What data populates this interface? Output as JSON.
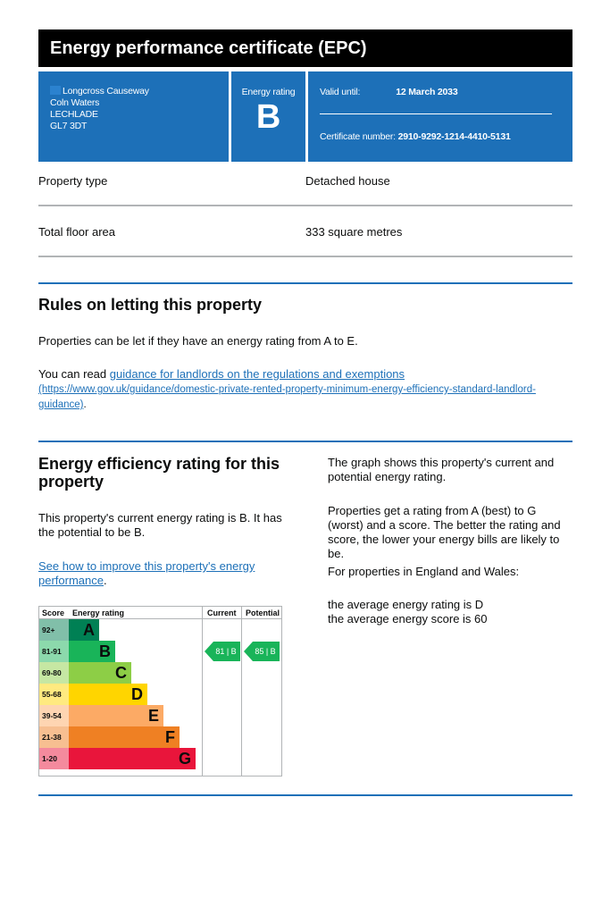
{
  "header": {
    "title": "Energy performance certificate (EPC)"
  },
  "address": {
    "lines": [
      "Longcross Causeway",
      "Coln Waters",
      "LECHLADE",
      "GL7 3DT"
    ]
  },
  "rating_box": {
    "label": "Energy rating",
    "value": "B"
  },
  "validity": {
    "valid_label": "Valid until:",
    "valid_date": "12 March 2033",
    "cert_label": "Certificate number:",
    "cert_number": "2910-9292-1214-4410-5131"
  },
  "summary": [
    {
      "key": "Property type",
      "value": "Detached house"
    },
    {
      "key": "Total floor area",
      "value": "333 square metres"
    }
  ],
  "rules": {
    "heading": "Rules on letting this property",
    "para1": "Properties can be let if they have an energy rating from A to E.",
    "para2_prefix": "You can read ",
    "link_text": "guidance for landlords on the regulations and exemptions",
    "link_url": "(https://www.gov.uk/guidance/domestic-private-rented-property-minimum-energy-efficiency-standard-landlord-guidance)",
    "para2_suffix": "."
  },
  "efficiency": {
    "heading": "Energy efficiency rating for this property",
    "para1": "This property's current energy rating is B. It has the potential to be B.",
    "link_text": "See how to improve this property's energy performance",
    "link_suffix": ".",
    "right_p1": "The graph shows this property's current and potential energy rating.",
    "right_p2": "Properties get a rating from A (best) to G (worst) and a score. The better the rating and score, the lower your energy bills are likely to be.",
    "right_p3": "For properties in England and Wales:",
    "right_p4a": "the average energy rating is D",
    "right_p4b": "the average energy score is 60"
  },
  "chart_data": {
    "type": "table",
    "headers": [
      "Score",
      "Energy rating",
      "Current",
      "Potential"
    ],
    "bands": [
      {
        "range": "92+",
        "letter": "A",
        "color": "#008054",
        "score_bg": "#81bfa9"
      },
      {
        "range": "81-91",
        "letter": "B",
        "color": "#19b459",
        "score_bg": "#8cd9ac"
      },
      {
        "range": "69-80",
        "letter": "C",
        "color": "#8dce46",
        "score_bg": "#c6e7a3"
      },
      {
        "range": "55-68",
        "letter": "D",
        "color": "#ffd500",
        "score_bg": "#ffea80"
      },
      {
        "range": "39-54",
        "letter": "E",
        "color": "#fcaa65",
        "score_bg": "#fed5b2"
      },
      {
        "range": "21-38",
        "letter": "F",
        "color": "#ef8023",
        "score_bg": "#f7bf91"
      },
      {
        "range": "1-20",
        "letter": "G",
        "color": "#e9153b",
        "score_bg": "#f48a9d"
      }
    ],
    "current": {
      "score": 81,
      "letter": "B",
      "label": "81 | B"
    },
    "potential": {
      "score": 85,
      "letter": "B",
      "label": "85 | B"
    },
    "arrow_color": "#19b459"
  }
}
